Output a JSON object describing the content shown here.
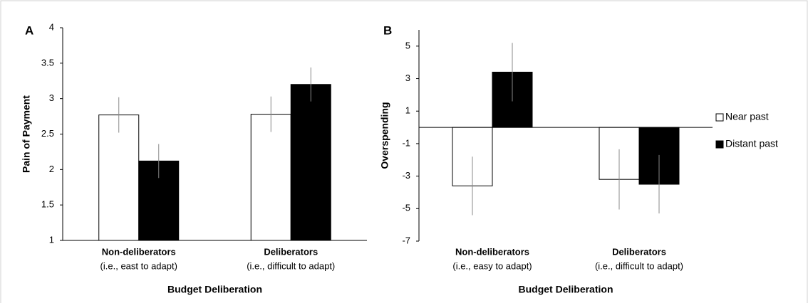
{
  "chart_data": [
    {
      "type": "bar",
      "panel_label": "A",
      "y_label": "Pain of Payment",
      "x_label": "Budget Deliberation",
      "categories": [
        "Non-deliberators",
        "Deliberators"
      ],
      "category_notes": [
        "(i.e., east to adapt)",
        "(i.e., difficult to adapt)"
      ],
      "series": [
        {
          "color": "#ffffff",
          "values": [
            2.77,
            2.78
          ],
          "errors": [
            0.25,
            0.25
          ]
        },
        {
          "color": "#000000",
          "values": [
            2.12,
            3.2
          ],
          "errors": [
            0.24,
            0.24
          ]
        }
      ],
      "ylim": [
        1,
        4
      ],
      "yticks": [
        1,
        1.5,
        2,
        2.5,
        3,
        3.5,
        4
      ]
    },
    {
      "type": "bar",
      "panel_label": "B",
      "y_label": "Overspending",
      "x_label": "Budget Deliberation",
      "categories": [
        "Non-deliberators",
        "Deliberators"
      ],
      "category_notes": [
        "(i.e., easy to adapt)",
        "(i.e., difficult to adapt)"
      ],
      "series": [
        {
          "name": "Near past",
          "color": "#ffffff",
          "values": [
            -3.6,
            -3.2
          ],
          "errors": [
            1.8,
            1.85
          ]
        },
        {
          "name": "Distant past",
          "color": "#000000",
          "values": [
            3.4,
            -3.5
          ],
          "errors": [
            1.8,
            1.8
          ]
        }
      ],
      "ylim": [
        -7,
        6
      ],
      "yticks": [
        -7,
        -5,
        -3,
        -1,
        1,
        3,
        5
      ],
      "legend": "right"
    }
  ]
}
